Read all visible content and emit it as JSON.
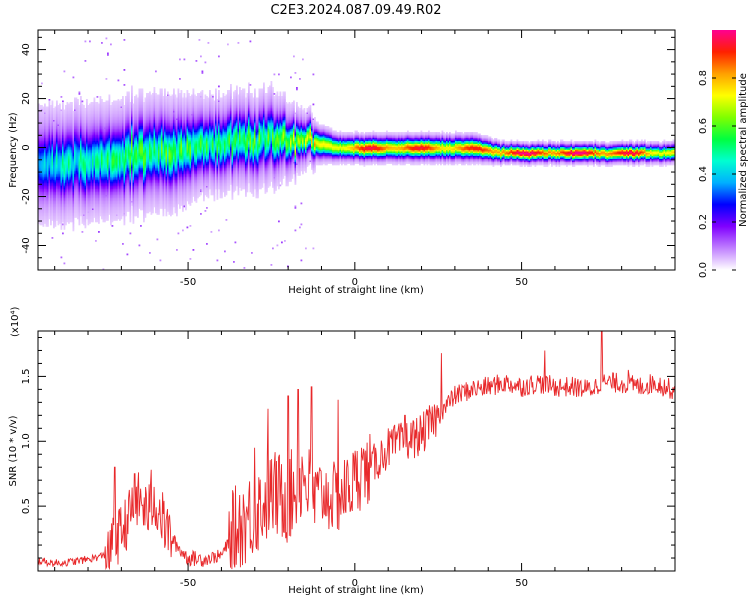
{
  "figure_title": "C2E3.2024.087.09.49.R02",
  "chart_data": [
    {
      "type": "heatmap",
      "xlabel": "Height of straight line (km)",
      "ylabel": "Frequency (Hz)",
      "xlim": [
        -95,
        96
      ],
      "ylim": [
        -50,
        48
      ],
      "x_ticks": [
        -50,
        0,
        50
      ],
      "x_tick_labels": [
        "-50",
        "0",
        "50"
      ],
      "y_ticks": [
        -40,
        -20,
        0,
        20,
        40
      ],
      "y_tick_labels": [
        "-40",
        "-20",
        "0",
        "20",
        "40"
      ],
      "colorbar": {
        "label": "Normalized spectral amplitude",
        "range": [
          0,
          1
        ],
        "ticks": [
          0.0,
          0.2,
          0.4,
          0.6,
          0.8
        ],
        "tick_labels": [
          "0.0",
          "0.2",
          "0.4",
          "0.6",
          "0.8"
        ],
        "colors": [
          "#ffffff",
          "#c080ff",
          "#8000ff",
          "#0000ff",
          "#00b0ff",
          "#00ffd0",
          "#00ff40",
          "#80ff00",
          "#ffff00",
          "#ffa000",
          "#ff2000",
          "#ff0090"
        ]
      },
      "ridge": {
        "height_km": [
          -95,
          -85,
          -75,
          -65,
          -55,
          -45,
          -35,
          -25,
          -15,
          -5,
          5,
          15,
          25,
          35,
          45,
          55,
          65,
          75,
          85,
          95
        ],
        "frequency_hz": [
          -7,
          -6,
          -5,
          -3,
          -1,
          1,
          3,
          4,
          3,
          0,
          0,
          0,
          0,
          0,
          -2,
          -2,
          -2,
          -2,
          -2,
          -2
        ],
        "peak_amplitude": [
          0.3,
          0.35,
          0.4,
          0.45,
          0.45,
          0.45,
          0.45,
          0.45,
          0.55,
          0.8,
          0.9,
          0.9,
          0.85,
          0.85,
          0.95,
          0.95,
          0.95,
          0.95,
          0.9,
          0.75
        ],
        "spread_hz": [
          6,
          6,
          6,
          6,
          6,
          5,
          5,
          5,
          3,
          2,
          2,
          2,
          2,
          2,
          1.5,
          1.5,
          1.5,
          1.5,
          1.5,
          1.5
        ]
      }
    },
    {
      "type": "line",
      "xlabel": "Height of straight line (km)",
      "ylabel": "SNR (10 * v/v)",
      "y_multiplier": "(x10⁴)",
      "xlim": [
        -95,
        96
      ],
      "ylim": [
        0,
        1.85
      ],
      "x_ticks": [
        -50,
        0,
        50
      ],
      "x_tick_labels": [
        "-50",
        "0",
        "50"
      ],
      "y_ticks": [
        0.5,
        1.0,
        1.5
      ],
      "y_tick_labels": [
        "0.5",
        "1.0",
        "1.5"
      ],
      "line_color": "#e8282a",
      "series": [
        {
          "x": [
            -95,
            -90,
            -85,
            -80,
            -75,
            -70,
            -65,
            -62,
            -60,
            -57,
            -55,
            -52,
            -50,
            -45,
            -40,
            -35,
            -30,
            -25,
            -20,
            -15,
            -13,
            -10,
            -5,
            0,
            5,
            10,
            15,
            20,
            25,
            30,
            35,
            40,
            45,
            50,
            55,
            60,
            65,
            70,
            75,
            80,
            85,
            90,
            95
          ],
          "y": [
            0.08,
            0.06,
            0.07,
            0.09,
            0.12,
            0.3,
            0.55,
            0.45,
            0.55,
            0.35,
            0.25,
            0.15,
            0.1,
            0.09,
            0.12,
            0.35,
            0.45,
            0.6,
            0.55,
            0.75,
            0.55,
            0.6,
            0.55,
            0.7,
            0.8,
            0.95,
            1.0,
            1.05,
            1.2,
            1.35,
            1.4,
            1.42,
            1.45,
            1.42,
            1.45,
            1.42,
            1.42,
            1.4,
            1.45,
            1.45,
            1.42,
            1.45,
            1.4
          ],
          "spikes": [
            [
              -72,
              0.8
            ],
            [
              -66,
              0.75
            ],
            [
              -61,
              0.78
            ],
            [
              -30,
              0.95
            ],
            [
              -26,
              1.25
            ],
            [
              -20,
              1.35
            ],
            [
              -17,
              1.4
            ],
            [
              -13,
              1.42
            ],
            [
              -5,
              1.32
            ],
            [
              2,
              0.95
            ],
            [
              15,
              1.2
            ],
            [
              26,
              1.68
            ],
            [
              57,
              1.7
            ],
            [
              74,
              1.85
            ],
            [
              82,
              1.55
            ]
          ]
        }
      ]
    }
  ]
}
